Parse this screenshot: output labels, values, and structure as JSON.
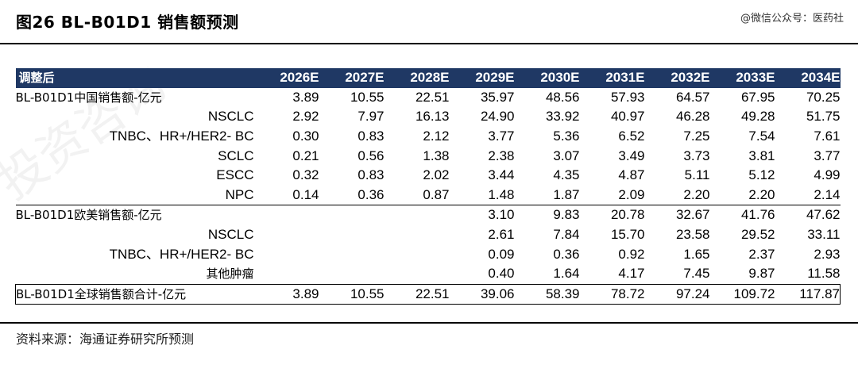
{
  "figure": {
    "title": "图26 BL-B01D1 销售额预测",
    "wechat_tag": "@微信公众号：医药社",
    "source": "资料来源：海通证券研究所预测",
    "watermark": "投资咨询"
  },
  "table": {
    "header_first": "调整后",
    "years": [
      "2026E",
      "2027E",
      "2028E",
      "2029E",
      "2030E",
      "2031E",
      "2032E",
      "2033E",
      "2034E"
    ],
    "rows": [
      {
        "kind": "main",
        "label": "BL-B01D1中国销售额-亿元",
        "values": [
          "3.89",
          "10.55",
          "22.51",
          "35.97",
          "48.56",
          "57.93",
          "64.57",
          "67.95",
          "70.25"
        ]
      },
      {
        "kind": "sub",
        "label": "NSCLC",
        "values": [
          "2.92",
          "7.97",
          "16.13",
          "24.90",
          "33.92",
          "40.97",
          "46.28",
          "49.28",
          "51.75"
        ]
      },
      {
        "kind": "sub",
        "label": "TNBC、HR+/HER2- BC",
        "values": [
          "0.30",
          "0.83",
          "2.12",
          "3.77",
          "5.36",
          "6.52",
          "7.25",
          "7.54",
          "7.61"
        ]
      },
      {
        "kind": "sub",
        "label": "SCLC",
        "values": [
          "0.21",
          "0.56",
          "1.38",
          "2.38",
          "3.07",
          "3.49",
          "3.73",
          "3.81",
          "3.77"
        ]
      },
      {
        "kind": "sub",
        "label": "ESCC",
        "values": [
          "0.32",
          "0.83",
          "2.02",
          "3.44",
          "4.35",
          "4.87",
          "5.11",
          "5.12",
          "4.99"
        ]
      },
      {
        "kind": "sub",
        "label": "NPC",
        "values": [
          "0.14",
          "0.36",
          "0.87",
          "1.48",
          "1.87",
          "2.09",
          "2.20",
          "2.20",
          "2.14"
        ]
      },
      {
        "kind": "main",
        "label": "BL-B01D1欧美销售额-亿元",
        "values": [
          "",
          "",
          "",
          "3.10",
          "9.83",
          "20.78",
          "32.67",
          "41.76",
          "47.62"
        ]
      },
      {
        "kind": "sub",
        "label": "NSCLC",
        "values": [
          "",
          "",
          "",
          "2.61",
          "7.84",
          "15.70",
          "23.58",
          "29.52",
          "33.11"
        ]
      },
      {
        "kind": "sub",
        "label": "TNBC、HR+/HER2- BC",
        "values": [
          "",
          "",
          "",
          "0.09",
          "0.36",
          "0.92",
          "1.65",
          "2.37",
          "2.93"
        ]
      },
      {
        "kind": "sub-cjk",
        "label": "其他肿瘤",
        "values": [
          "",
          "",
          "",
          "0.40",
          "1.64",
          "4.17",
          "7.45",
          "9.87",
          "11.58"
        ]
      },
      {
        "kind": "total",
        "label": "BL-B01D1全球销售额合计-亿元",
        "values": [
          "3.89",
          "10.55",
          "22.51",
          "39.06",
          "58.39",
          "78.72",
          "97.24",
          "109.72",
          "117.87"
        ]
      }
    ]
  }
}
